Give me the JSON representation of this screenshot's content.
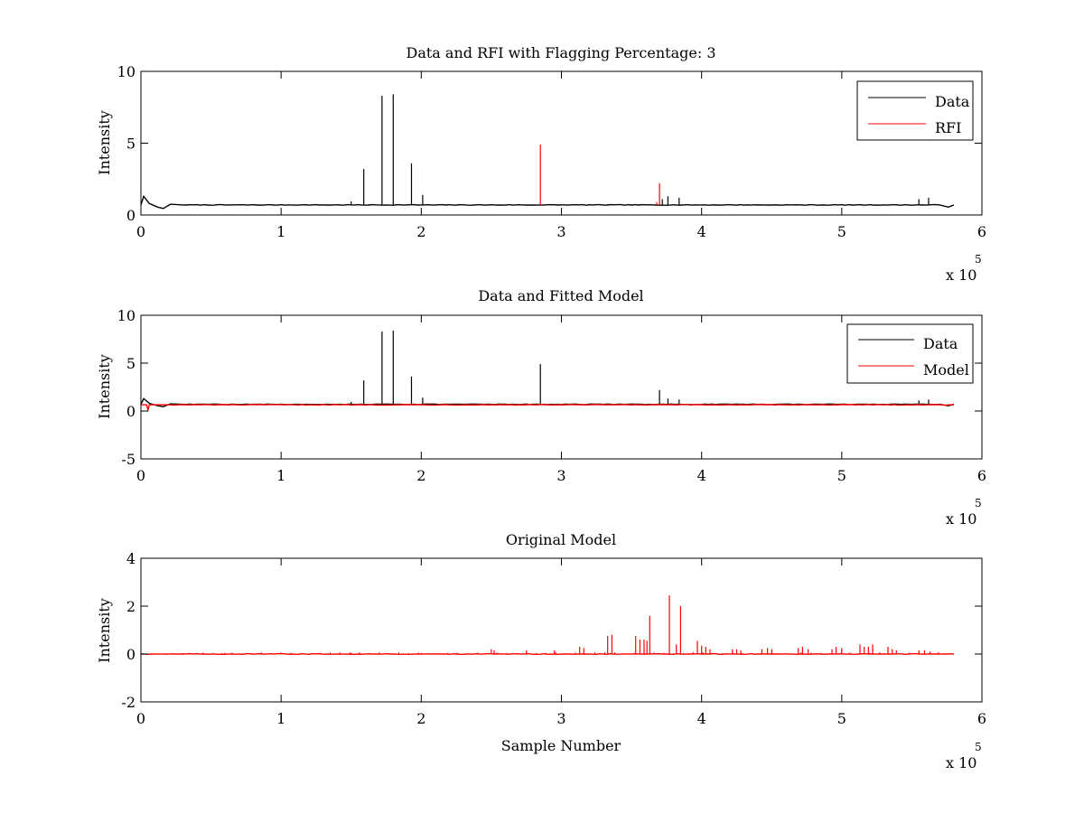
{
  "figure": {
    "background": "#ffffff",
    "axes_color": "#000000"
  },
  "chart_data": [
    {
      "type": "line",
      "title": "Data and RFI with Flagging Percentage: 3",
      "xlabel": "",
      "ylabel": "Intensity",
      "xlim": [
        0,
        600000
      ],
      "ylim": [
        0,
        10
      ],
      "xticks": [
        0,
        1,
        2,
        3,
        4,
        5,
        6
      ],
      "yticks": [
        0,
        5,
        10
      ],
      "x_exponent_label": {
        "base": "x 10",
        "power": "5"
      },
      "legend": {
        "placement": "top-right",
        "entries": [
          "Data",
          "RFI"
        ]
      },
      "series": [
        {
          "name": "Data",
          "color": "#000000",
          "baseline": 0.7,
          "start_profile": [
            [
              0,
              0.7
            ],
            [
              2000,
              1.3
            ],
            [
              6000,
              0.8
            ],
            [
              12000,
              0.55
            ],
            [
              16000,
              0.45
            ],
            [
              21000,
              0.75
            ],
            [
              30000,
              0.7
            ]
          ],
          "end_profile": [
            [
              570000,
              0.7
            ],
            [
              576000,
              0.55
            ],
            [
              580000,
              0.7
            ]
          ],
          "spikes": [
            [
              150000,
              0.95
            ],
            [
              159000,
              3.2
            ],
            [
              172000,
              8.3
            ],
            [
              180000,
              8.4
            ],
            [
              193000,
              3.6
            ],
            [
              201000,
              1.4
            ],
            [
              372000,
              1.1
            ],
            [
              376000,
              1.3
            ],
            [
              384000,
              1.2
            ],
            [
              555000,
              1.1
            ],
            [
              562000,
              1.2
            ]
          ],
          "x_end": 580000
        },
        {
          "name": "RFI",
          "color": "#ff0000",
          "spikes": [
            [
              285000,
              4.9
            ],
            [
              370000,
              2.2
            ],
            [
              368000,
              0.9
            ]
          ]
        }
      ]
    },
    {
      "type": "line",
      "title": "Data and Fitted Model",
      "xlabel": "",
      "ylabel": "Intensity",
      "xlim": [
        0,
        600000
      ],
      "ylim": [
        -5,
        10
      ],
      "xticks": [
        0,
        1,
        2,
        3,
        4,
        5,
        6
      ],
      "yticks": [
        -5,
        0,
        5,
        10
      ],
      "x_exponent_label": {
        "base": "x 10",
        "power": "5"
      },
      "legend": {
        "placement": "top-right",
        "entries": [
          "Data",
          "Model"
        ]
      },
      "series": [
        {
          "name": "Data",
          "color": "#000000",
          "baseline": 0.7,
          "start_profile": [
            [
              0,
              0.7
            ],
            [
              2000,
              1.3
            ],
            [
              6000,
              0.8
            ],
            [
              12000,
              0.55
            ],
            [
              16000,
              0.45
            ],
            [
              21000,
              0.75
            ],
            [
              30000,
              0.7
            ]
          ],
          "end_profile": [
            [
              570000,
              0.7
            ],
            [
              576000,
              0.55
            ],
            [
              580000,
              0.7
            ]
          ],
          "spikes": [
            [
              150000,
              0.95
            ],
            [
              159000,
              3.2
            ],
            [
              172000,
              8.3
            ],
            [
              180000,
              8.4
            ],
            [
              193000,
              3.6
            ],
            [
              201000,
              1.4
            ],
            [
              285000,
              4.9
            ],
            [
              370000,
              2.2
            ],
            [
              376000,
              1.3
            ],
            [
              384000,
              1.2
            ],
            [
              555000,
              1.1
            ],
            [
              562000,
              1.2
            ]
          ],
          "x_end": 580000
        },
        {
          "name": "Model",
          "color": "#ff0000",
          "baseline": 0.65,
          "start_profile": [
            [
              0,
              0.65
            ],
            [
              4000,
              0.65
            ],
            [
              5000,
              0.1
            ],
            [
              6000,
              0.65
            ],
            [
              20000,
              0.65
            ]
          ],
          "spikes": [],
          "x_end": 580000
        }
      ]
    },
    {
      "type": "line",
      "title": "Original Model",
      "xlabel": "Sample Number",
      "ylabel": "Intensity",
      "xlim": [
        0,
        600000
      ],
      "ylim": [
        -2,
        4
      ],
      "xticks": [
        0,
        1,
        2,
        3,
        4,
        5,
        6
      ],
      "yticks": [
        -2,
        0,
        2,
        4
      ],
      "x_exponent_label": {
        "base": "x 10",
        "power": "5"
      },
      "series": [
        {
          "name": "",
          "color": "#ff0000",
          "baseline": 0.0,
          "spikes": [
            [
              35000,
              0.05
            ],
            [
              60000,
              0.05
            ],
            [
              100000,
              0.05
            ],
            [
              150000,
              0.05
            ],
            [
              200000,
              0.05
            ],
            [
              250000,
              0.2
            ],
            [
              252000,
              0.15
            ],
            [
              275000,
              0.15
            ],
            [
              295000,
              0.15
            ],
            [
              313000,
              0.3
            ],
            [
              316000,
              0.25
            ],
            [
              333000,
              0.75
            ],
            [
              336000,
              0.8
            ],
            [
              353000,
              0.75
            ],
            [
              356000,
              0.6
            ],
            [
              359000,
              0.6
            ],
            [
              361000,
              0.55
            ],
            [
              363000,
              1.6
            ],
            [
              377000,
              2.45
            ],
            [
              382000,
              0.4
            ],
            [
              385000,
              2.0
            ],
            [
              397000,
              0.55
            ],
            [
              400000,
              0.35
            ],
            [
              403000,
              0.3
            ],
            [
              406000,
              0.2
            ],
            [
              422000,
              0.2
            ],
            [
              425000,
              0.2
            ],
            [
              428000,
              0.15
            ],
            [
              443000,
              0.2
            ],
            [
              447000,
              0.25
            ],
            [
              450000,
              0.2
            ],
            [
              469000,
              0.25
            ],
            [
              472000,
              0.3
            ],
            [
              476000,
              0.2
            ],
            [
              493000,
              0.2
            ],
            [
              496000,
              0.3
            ],
            [
              500000,
              0.25
            ],
            [
              513000,
              0.4
            ],
            [
              516000,
              0.3
            ],
            [
              519000,
              0.3
            ],
            [
              522000,
              0.4
            ],
            [
              533000,
              0.3
            ],
            [
              536000,
              0.2
            ],
            [
              539000,
              0.15
            ],
            [
              555000,
              0.15
            ],
            [
              559000,
              0.15
            ],
            [
              563000,
              0.1
            ]
          ],
          "x_end": 580000
        }
      ]
    }
  ]
}
